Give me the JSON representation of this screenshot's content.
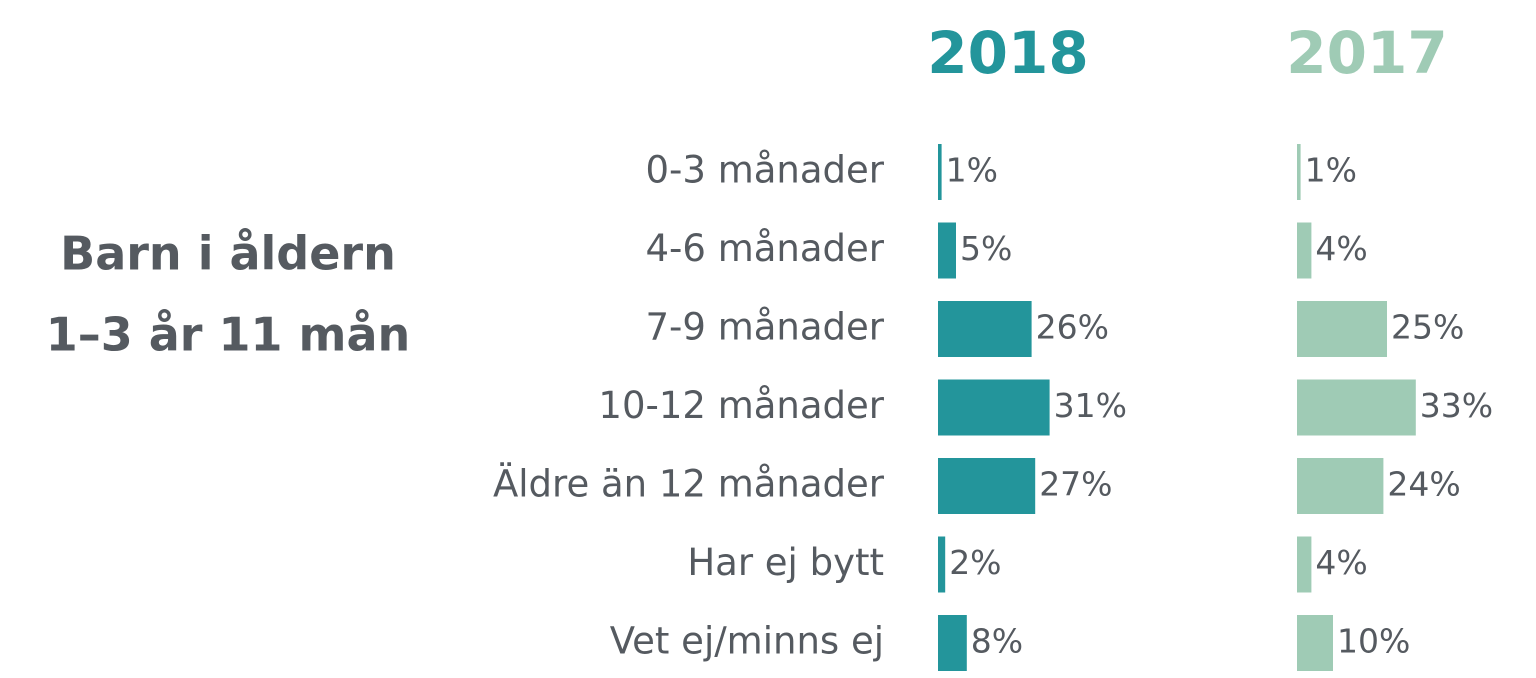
{
  "chart_data": {
    "type": "bar",
    "orientation": "horizontal",
    "title": [
      "Barn i åldern",
      "1–3 år 11 mån"
    ],
    "categories": [
      "0-3 månader",
      "4-6 månader",
      "7-9 månader",
      "10-12 månader",
      "Äldre än 12 månader",
      "Har ej bytt",
      "Vet ej/minns ej"
    ],
    "series": [
      {
        "name": "2018",
        "color": "#23959b",
        "values": [
          1,
          5,
          26,
          31,
          27,
          2,
          8
        ],
        "value_labels": [
          "1%",
          "5%",
          "26%",
          "31%",
          "27%",
          "2%",
          "8%"
        ]
      },
      {
        "name": "2017",
        "color": "#9fcbb5",
        "values": [
          1,
          4,
          25,
          33,
          24,
          4,
          10
        ],
        "value_labels": [
          "1%",
          "4%",
          "25%",
          "33%",
          "24%",
          "4%",
          "10%"
        ]
      }
    ]
  }
}
